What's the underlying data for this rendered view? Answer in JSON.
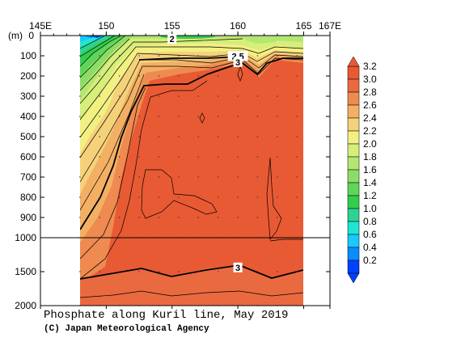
{
  "chart_data": {
    "type": "heatmap",
    "title": "Phosphate along Kuril line, May 2019",
    "credit": "(C) Japan Meteorological Agency",
    "ylabel": "(m)",
    "x_ticks": [
      "145E",
      "150",
      "155",
      "160",
      "165",
      "167E"
    ],
    "x_tick_values": [
      145,
      150,
      155,
      160,
      165,
      167
    ],
    "y_ticks_upper": [
      "0",
      "100",
      "200",
      "300",
      "400",
      "500",
      "600",
      "700",
      "800",
      "900",
      "1000"
    ],
    "y_ticks_lower": [
      "1500",
      "2000"
    ],
    "xlim": [
      145,
      167
    ],
    "ylim": [
      0,
      2000
    ],
    "y_break": 1000,
    "section_x_range": [
      148,
      165
    ],
    "colorbar": {
      "levels": [
        "0.2",
        "0.4",
        "0.6",
        "0.8",
        "1.0",
        "1.2",
        "1.4",
        "1.6",
        "1.8",
        "2.0",
        "2.2",
        "2.4",
        "2.6",
        "2.8",
        "3.0",
        "3.2"
      ],
      "colors": [
        "#0040ff",
        "#0a8cff",
        "#19c8ff",
        "#1ee6d2",
        "#2ed296",
        "#33cc4d",
        "#5dd65a",
        "#8cdd66",
        "#b4e673",
        "#d6ee7a",
        "#f2f082",
        "#f5d27a",
        "#f3b064",
        "#ef8a50",
        "#ea6a40",
        "#e85a34"
      ]
    },
    "contour_labels": [
      {
        "text": "2",
        "x": 155,
        "depth": 20
      },
      {
        "text": "2.5",
        "x": 160,
        "depth": 105
      },
      {
        "text": "3",
        "x": 160,
        "depth": 135
      },
      {
        "text": "3",
        "x": 160,
        "depth": 1450
      }
    ],
    "stations_x": [
      148,
      149.5,
      151,
      152.5,
      154,
      155.5,
      157,
      158.5,
      160,
      161.5,
      163,
      164.5
    ]
  }
}
